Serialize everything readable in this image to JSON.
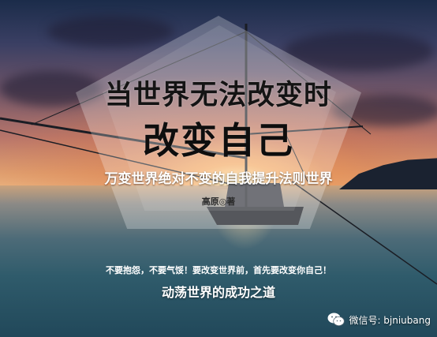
{
  "cover": {
    "title_line1": "当世界无法改变时",
    "title_line2": "改变自己",
    "subtitle": "万变世界绝对不变的自我提升法则世界",
    "author": "高原◎著",
    "slogan": "不要抱怨，不要气馁！要改变世界前，首先要改变你自己！",
    "tagline": "动荡世界的成功之道"
  },
  "watermark": {
    "icon": "wechat-icon",
    "label": "微信号: bjniubang"
  },
  "colors": {
    "sky_top": "#1b2c4a",
    "sunset": "#f1c08a",
    "sea": "#2f5b6b",
    "title": "#141414"
  }
}
